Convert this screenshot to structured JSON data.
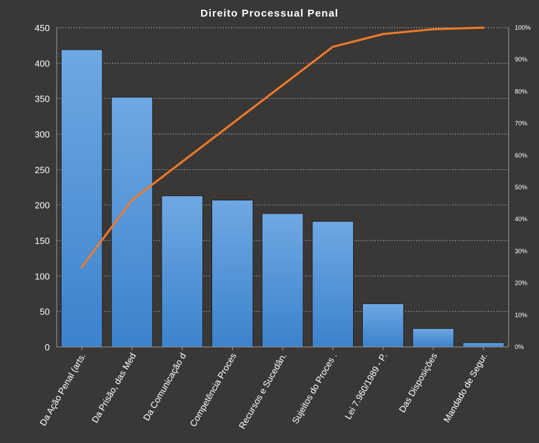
{
  "chart_data": {
    "type": "bar",
    "title": "Direito  Processual  Penal",
    "categories": [
      "Da Ação Penal (arts.",
      "Da Prisão, das Med",
      "Da Comunicação d",
      "Competência Proces",
      "Recursos e Sucedân.",
      "Sujeitos do Proces .",
      "Lei 7.960/1989 - P.",
      "Das Disposições",
      "Mandado de Segur."
    ],
    "series": [
      {
        "type": "bar",
        "values": [
          419,
          352,
          213,
          207,
          188,
          177,
          61,
          26,
          6
        ]
      },
      {
        "type": "line",
        "axis": "right",
        "values": [
          0.25,
          0.46,
          0.58,
          0.7,
          0.82,
          0.94,
          0.98,
          0.995,
          1.0
        ]
      }
    ],
    "ylim": [
      0,
      450
    ],
    "yticks": [
      "0",
      "50",
      "100",
      "150",
      "200",
      "250",
      "300",
      "350",
      "400",
      "450"
    ],
    "y2lim": [
      0,
      1
    ],
    "y2ticks": [
      "0%",
      "10%",
      "20%",
      "30%",
      "40%",
      "50%",
      "60%",
      "70%",
      "80%",
      "90%",
      "100%"
    ],
    "grid": true,
    "legend": "none",
    "colors": {
      "background": "#3a3836",
      "bar_top": "#6fa8e3",
      "bar_bottom": "#3b83cc",
      "line": "#f07a2a",
      "text": "#ffffff",
      "grid": "#bdbdbd"
    }
  }
}
